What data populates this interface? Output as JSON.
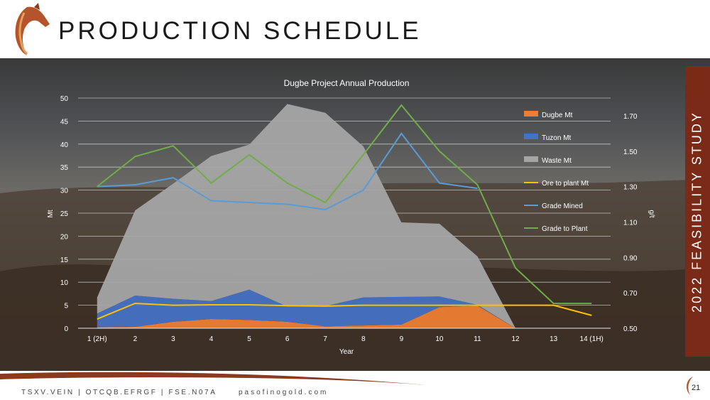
{
  "slide": {
    "title": "PRODUCTION SCHEDULE",
    "side_banner": "2022 FEASIBILITY STUDY",
    "footer_tickers": "TSXV.VEIN | OTCQB.EFRGF | FSE.N07A",
    "footer_web": "pasofinogold.com",
    "page_number": "21",
    "colors": {
      "banner": "#7b2a17",
      "swoosh": "#8b3a1e",
      "logo": "#b5532b"
    }
  },
  "chart_data": {
    "type": "area",
    "title": "Dugbe Project Annual Production",
    "xlabel": "Year",
    "ylabel": "Mt",
    "y2label": "g/t",
    "categories": [
      "1 (2H)",
      "2",
      "3",
      "4",
      "5",
      "6",
      "7",
      "8",
      "9",
      "10",
      "11",
      "12",
      "13",
      "14 (1H)"
    ],
    "ylim": [
      0,
      50
    ],
    "yticks": [
      "0",
      "5",
      "10",
      "15",
      "20",
      "25",
      "30",
      "35",
      "40",
      "45",
      "50"
    ],
    "y2lim": [
      0.5,
      1.8
    ],
    "y2ticks": [
      "0.50",
      "0.70",
      "0.90",
      "1.10",
      "1.30",
      "1.50",
      "1.70"
    ],
    "grid": true,
    "legend_position": "right",
    "series": [
      {
        "name": "Dugbe Mt",
        "type": "area",
        "axis": "left",
        "color": "#ed7d31",
        "values": [
          0.2,
          0.3,
          1.4,
          2.0,
          1.8,
          1.4,
          0.4,
          0.6,
          0.8,
          4.6,
          4.9,
          0,
          null,
          null
        ]
      },
      {
        "name": "Tuzon Mt",
        "type": "area",
        "axis": "left",
        "color": "#4472c4",
        "values": [
          3.0,
          6.8,
          5.0,
          3.9,
          6.6,
          3.3,
          4.4,
          6.1,
          6.0,
          2.3,
          0.2,
          0,
          null,
          null
        ]
      },
      {
        "name": "Waste Mt",
        "type": "area",
        "axis": "left",
        "color": "#a5a5a5",
        "values": [
          3.5,
          18.5,
          25.0,
          31.5,
          31.5,
          44.0,
          42.0,
          32.8,
          16.2,
          15.8,
          10.5,
          0,
          null,
          null
        ]
      },
      {
        "name": "Ore to plant Mt",
        "type": "line",
        "axis": "left",
        "color": "#ffc000",
        "values": [
          2.0,
          5.4,
          5.0,
          5.1,
          5.1,
          4.9,
          4.8,
          5.0,
          5.0,
          5.0,
          5.0,
          5.0,
          5.0,
          2.8
        ]
      },
      {
        "name": "Grade Mined",
        "type": "line",
        "axis": "right",
        "color": "#5b9bd5",
        "values": [
          1.3,
          1.31,
          1.35,
          1.22,
          1.21,
          1.2,
          1.17,
          1.28,
          1.6,
          1.32,
          1.29,
          null,
          null,
          null
        ]
      },
      {
        "name": "Grade to Plant",
        "type": "line",
        "axis": "right",
        "color": "#70ad47",
        "values": [
          1.3,
          1.47,
          1.53,
          1.32,
          1.48,
          1.32,
          1.21,
          1.48,
          1.76,
          1.5,
          1.31,
          0.84,
          0.64,
          0.64
        ]
      }
    ]
  }
}
